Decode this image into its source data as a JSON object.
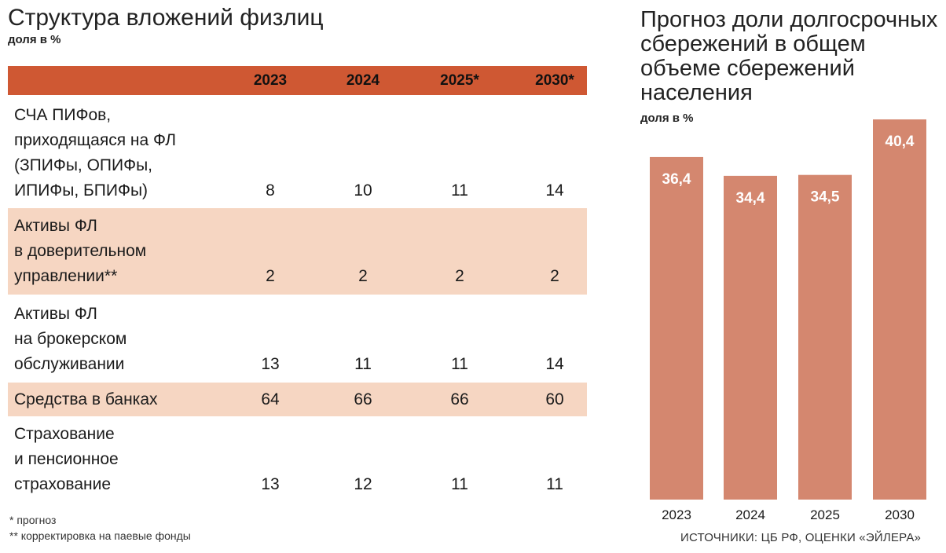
{
  "table": {
    "title": "Структура вложений физлиц",
    "unit": "доля в %",
    "columns": [
      "2023",
      "2024",
      "2025*",
      "2030*"
    ],
    "rows": [
      {
        "label_lines": [
          "СЧА ПИФов,",
          "приходящаяся на ФЛ",
          "(ЗПИФы, ОПИФы,",
          "ИПИФы, БПИФы)"
        ],
        "values": [
          "8",
          "10",
          "11",
          "14"
        ],
        "shaded": false
      },
      {
        "label_lines": [
          "Активы ФЛ",
          "в доверительном",
          "управлении**"
        ],
        "values": [
          "2",
          "2",
          "2",
          "2"
        ],
        "shaded": true
      },
      {
        "label_lines": [
          "Активы ФЛ",
          "на брокерском",
          "обслуживании"
        ],
        "values": [
          "13",
          "11",
          "11",
          "14"
        ],
        "shaded": false
      },
      {
        "label_lines": [
          "Средства в банках"
        ],
        "values": [
          "64",
          "66",
          "66",
          "60"
        ],
        "shaded": true
      },
      {
        "label_lines": [
          "Страхование",
          "и пенсионное",
          "страхование"
        ],
        "values": [
          "13",
          "12",
          "11",
          "11"
        ],
        "shaded": false
      }
    ],
    "notes": [
      "* прогноз",
      "** корректировка на паевые фонды"
    ],
    "colors": {
      "header": "#cf5833",
      "shaded_row": "#f6d6c2"
    }
  },
  "chart_data": {
    "type": "bar",
    "title": "Прогноз доли долгосрочных сбережений в общем объеме сбережений населения",
    "unit": "доля в %",
    "categories": [
      "2023",
      "2024",
      "2025",
      "2030"
    ],
    "values": [
      36.4,
      34.4,
      34.5,
      40.4
    ],
    "value_labels": [
      "36,4",
      "34,4",
      "34,5",
      "40,4"
    ],
    "xlabel": "",
    "ylabel": "",
    "ylim": [
      0,
      40.4
    ],
    "grid": false,
    "bar_color": "#d4876f"
  },
  "source": "ИСТОЧНИКИ: ЦБ РФ, ОЦЕНКИ «ЭЙЛЕРА»"
}
